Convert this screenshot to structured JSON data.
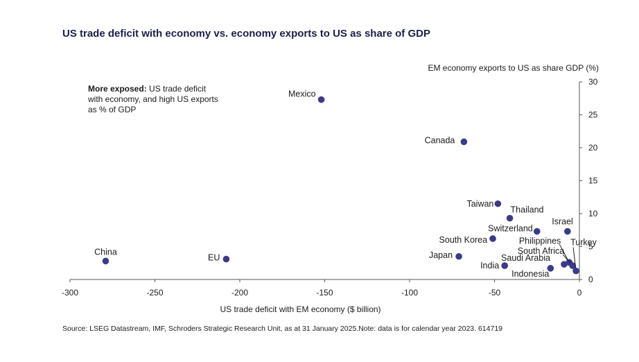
{
  "title": "US trade deficit with economy vs. economy exports to US as share of GDP",
  "source": "Source: LSEG Datastream, IMF, Schroders Strategic Research Unit, as at 31 January 2025.Note: data is for calendar year 2023. 614719",
  "annotation": {
    "bold": "More exposed:",
    "text": " US trade deficit with economy, and high US exports as % of GDP"
  },
  "colors": {
    "marker": "#3b3a8c",
    "axis": "#555555",
    "title": "#1b1f4a"
  },
  "chart_data": {
    "type": "scatter",
    "title": "US trade deficit with economy vs. economy exports to US as share of GDP",
    "xlabel": "US trade deficit with EM economy ($ billion)",
    "ylabel": "EM economy exports to US as share GDP (%)",
    "xlim": [
      -300,
      0
    ],
    "ylim": [
      0,
      30
    ],
    "xticks": [
      -300,
      -250,
      -200,
      -150,
      -100,
      -50,
      0
    ],
    "yticks": [
      0,
      5,
      10,
      15,
      20,
      25,
      30
    ],
    "grid": false,
    "points": [
      {
        "label": "China",
        "x": -279,
        "y": 2.8
      },
      {
        "label": "EU",
        "x": -208,
        "y": 3.1
      },
      {
        "label": "Mexico",
        "x": -152,
        "y": 27.3
      },
      {
        "label": "Canada",
        "x": -68,
        "y": 20.9
      },
      {
        "label": "Japan",
        "x": -71,
        "y": 3.5
      },
      {
        "label": "Taiwan",
        "x": -48,
        "y": 11.5
      },
      {
        "label": "South Korea",
        "x": -51,
        "y": 6.2
      },
      {
        "label": "Thailand",
        "x": -41,
        "y": 9.3
      },
      {
        "label": "Switzerland",
        "x": -25,
        "y": 7.3
      },
      {
        "label": "India",
        "x": -44,
        "y": 2.1
      },
      {
        "label": "Israel",
        "x": -7,
        "y": 7.3
      },
      {
        "label": "Indonesia",
        "x": -17,
        "y": 1.7
      },
      {
        "label": "Philippines",
        "x": -6,
        "y": 2.6
      },
      {
        "label": "South Africa",
        "x": -4,
        "y": 2.1
      },
      {
        "label": "Saudi Arabia",
        "x": -9,
        "y": 2.3
      },
      {
        "label": "Turkey",
        "x": -2,
        "y": 1.3
      }
    ]
  }
}
